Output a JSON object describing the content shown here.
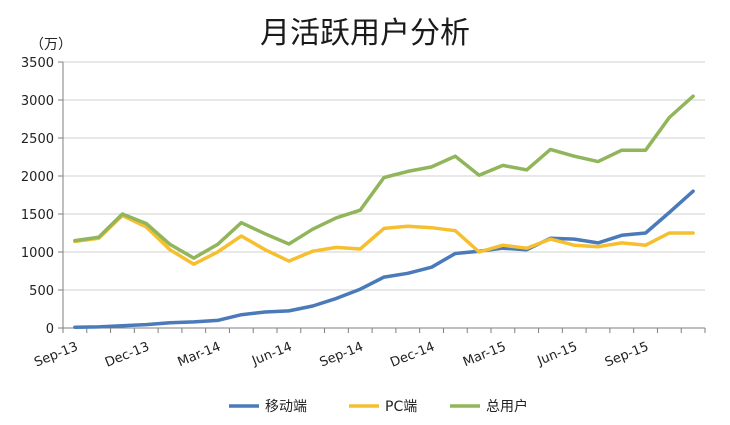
{
  "chart_data": {
    "type": "line",
    "title": "月活跃用户分析",
    "unit_label": "（万）",
    "ylim": [
      0,
      3500
    ],
    "y_ticks": [
      0,
      500,
      1000,
      1500,
      2000,
      2500,
      3000,
      3500
    ],
    "x_tick_labels": [
      "Sep-13",
      "Dec-13",
      "Mar-14",
      "Jun-14",
      "Sep-14",
      "Dec-14",
      "Mar-15",
      "Jun-15",
      "Sep-15"
    ],
    "grid": "horizontal",
    "legend_position": "bottom",
    "x": [
      "Sep-13",
      "Oct-13",
      "Nov-13",
      "Dec-13",
      "Jan-14",
      "Feb-14",
      "Mar-14",
      "Apr-14",
      "May-14",
      "Jun-14",
      "Jul-14",
      "Aug-14",
      "Sep-14",
      "Oct-14",
      "Nov-14",
      "Dec-14",
      "Jan-15",
      "Feb-15",
      "Mar-15",
      "Apr-15",
      "May-15",
      "Jun-15",
      "Jul-15",
      "Aug-15",
      "Sep-15",
      "Oct-15",
      "Nov-15"
    ],
    "series": [
      {
        "name": "移动端",
        "color": "#4a7ab9",
        "values": [
          10,
          15,
          30,
          45,
          70,
          80,
          100,
          175,
          210,
          225,
          290,
          390,
          510,
          670,
          720,
          800,
          980,
          1010,
          1050,
          1030,
          1180,
          1170,
          1120,
          1220,
          1250,
          1520,
          1800
        ]
      },
      {
        "name": "PC端",
        "color": "#f6bf2f",
        "values": [
          1140,
          1180,
          1480,
          1330,
          1030,
          840,
          1000,
          1210,
          1030,
          880,
          1010,
          1060,
          1040,
          1310,
          1340,
          1320,
          1280,
          1000,
          1090,
          1050,
          1170,
          1090,
          1070,
          1120,
          1090,
          1250,
          1250
        ]
      },
      {
        "name": "总用户",
        "color": "#91b55a",
        "values": [
          1150,
          1195,
          1500,
          1375,
          1100,
          920,
          1100,
          1385,
          1240,
          1105,
          1300,
          1450,
          1550,
          1980,
          2060,
          2120,
          2260,
          2010,
          2140,
          2080,
          2350,
          2260,
          2190,
          2340,
          2340,
          2770,
          3050
        ]
      }
    ]
  }
}
